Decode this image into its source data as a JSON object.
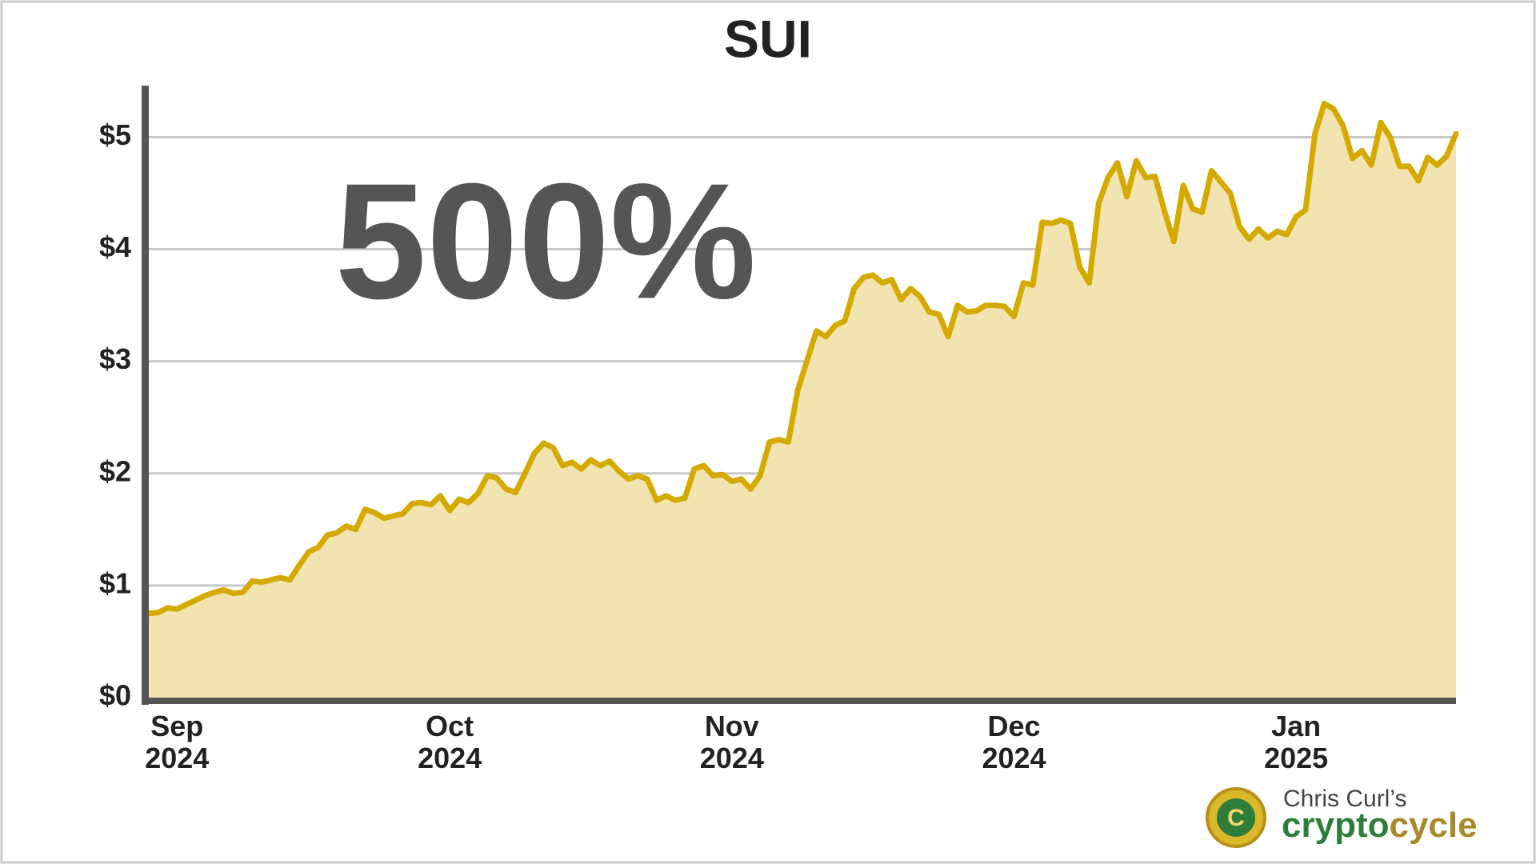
{
  "chart_data": {
    "type": "area",
    "title": "SUI",
    "annotation": "500%",
    "categories": [
      null,
      null,
      null,
      "Sep 2024",
      null,
      null,
      null,
      null,
      null,
      null,
      null,
      null,
      null,
      null,
      null,
      null,
      null,
      null,
      null,
      null,
      null,
      null,
      null,
      null,
      null,
      null,
      null,
      null,
      null,
      null,
      null,
      null,
      "Oct 2024",
      null,
      null,
      null,
      null,
      null,
      null,
      null,
      null,
      null,
      null,
      null,
      null,
      null,
      null,
      null,
      null,
      null,
      null,
      null,
      null,
      null,
      null,
      null,
      null,
      null,
      null,
      null,
      null,
      null,
      "Nov 2024",
      null,
      null,
      null,
      null,
      null,
      null,
      null,
      null,
      null,
      null,
      null,
      null,
      null,
      null,
      null,
      null,
      null,
      null,
      null,
      null,
      null,
      null,
      null,
      null,
      null,
      null,
      null,
      null,
      null,
      "Dec 2024",
      null,
      null,
      null,
      null,
      null,
      null,
      null,
      null,
      null,
      null,
      null,
      null,
      null,
      null,
      null,
      null,
      null,
      null,
      null,
      null,
      null,
      null,
      null,
      null,
      null,
      null,
      null,
      null,
      null,
      "Jan 2025",
      null,
      null,
      null,
      null,
      null,
      null,
      null,
      null,
      null,
      null,
      null,
      null,
      null,
      null,
      null,
      null,
      null
    ],
    "values": [
      0.75,
      0.76,
      0.8,
      0.79,
      0.83,
      0.87,
      0.91,
      0.94,
      0.96,
      0.93,
      0.94,
      1.04,
      1.03,
      1.05,
      1.07,
      1.05,
      1.18,
      1.3,
      1.34,
      1.45,
      1.47,
      1.53,
      1.5,
      1.68,
      1.65,
      1.6,
      1.62,
      1.64,
      1.73,
      1.74,
      1.72,
      1.8,
      1.67,
      1.77,
      1.74,
      1.82,
      1.98,
      1.96,
      1.86,
      1.83,
      2.0,
      2.18,
      2.27,
      2.23,
      2.07,
      2.1,
      2.04,
      2.12,
      2.07,
      2.11,
      2.02,
      1.95,
      1.98,
      1.95,
      1.76,
      1.8,
      1.76,
      1.78,
      2.04,
      2.07,
      1.98,
      1.99,
      1.93,
      1.95,
      1.86,
      1.98,
      2.28,
      2.3,
      2.28,
      2.74,
      3.01,
      3.27,
      3.22,
      3.32,
      3.36,
      3.65,
      3.75,
      3.77,
      3.7,
      3.73,
      3.55,
      3.65,
      3.58,
      3.44,
      3.42,
      3.22,
      3.5,
      3.44,
      3.45,
      3.5,
      3.5,
      3.49,
      3.4,
      3.7,
      3.68,
      4.24,
      4.23,
      4.26,
      4.23,
      3.84,
      3.7,
      4.41,
      4.64,
      4.77,
      4.47,
      4.79,
      4.64,
      4.65,
      4.34,
      4.07,
      4.57,
      4.36,
      4.33,
      4.7,
      4.6,
      4.5,
      4.2,
      4.09,
      4.18,
      4.1,
      4.16,
      4.13,
      4.29,
      4.35,
      5.03,
      5.3,
      5.25,
      5.1,
      4.81,
      4.88,
      4.75,
      5.13,
      5.0,
      4.74,
      4.74,
      4.61,
      4.82,
      4.75,
      4.83,
      5.03
    ],
    "color": "#d4aa00",
    "fill_color": "#f2e4b0",
    "ylim": [
      0,
      5.46
    ],
    "yticks": [
      {
        "value": 0,
        "label": "$0"
      },
      {
        "value": 1,
        "label": "$1"
      },
      {
        "value": 2,
        "label": "$2"
      },
      {
        "value": 3,
        "label": "$3"
      },
      {
        "value": 4,
        "label": "$4"
      },
      {
        "value": 5,
        "label": "$5"
      }
    ],
    "grid": true
  },
  "branding": {
    "line1": "Chris Curl’s",
    "word1": "crypto",
    "word2": "cycle"
  }
}
